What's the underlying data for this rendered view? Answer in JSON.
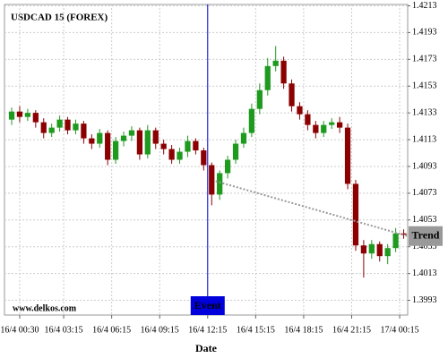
{
  "chart_data": {
    "type": "candlestick",
    "title": "USDCAD 15 (FOREX)",
    "watermark": "www.delkos.com",
    "x_label": "Date",
    "x": [
      0,
      0.5,
      1,
      1.5,
      2,
      2.5,
      3,
      3.5,
      4,
      4.5,
      5,
      5.5,
      6,
      6.5,
      7,
      7.5,
      8,
      8.5,
      9,
      9.5,
      10,
      10.5,
      11,
      11.5,
      12,
      12.5,
      13,
      13.5,
      14,
      14.5,
      15,
      15.5,
      16,
      16.5,
      17,
      17.5,
      18,
      18.5,
      19,
      19.5,
      20,
      20.5,
      21,
      21.5,
      22,
      22.5,
      23,
      23.5,
      24,
      24.5
    ],
    "open": [
      1.4128,
      1.4134,
      1.413,
      1.4133,
      1.4126,
      1.4118,
      1.4122,
      1.4128,
      1.412,
      1.4125,
      1.4114,
      1.411,
      1.4118,
      1.4098,
      1.4112,
      1.4116,
      1.412,
      1.4102,
      1.412,
      1.411,
      1.4106,
      1.4098,
      1.4104,
      1.4112,
      1.4105,
      1.4094,
      1.4072,
      1.4088,
      1.4098,
      1.411,
      1.4118,
      1.4136,
      1.415,
      1.4168,
      1.4172,
      1.4155,
      1.4138,
      1.4132,
      1.4124,
      1.4118,
      1.4124,
      1.4126,
      1.4122,
      1.408,
      1.4034,
      1.4028,
      1.4035,
      1.4026,
      1.4032,
      1.4043
    ],
    "high": [
      1.4137,
      1.4138,
      1.4136,
      1.4135,
      1.4129,
      1.4125,
      1.4131,
      1.413,
      1.4128,
      1.4127,
      1.4117,
      1.4121,
      1.412,
      1.4115,
      1.4119,
      1.4123,
      1.4122,
      1.4124,
      1.4122,
      1.4113,
      1.4109,
      1.4107,
      1.4116,
      1.4114,
      1.4107,
      1.4096,
      1.409,
      1.4101,
      1.4113,
      1.4122,
      1.414,
      1.4155,
      1.4174,
      1.4183,
      1.4175,
      1.4158,
      1.4141,
      1.4135,
      1.4127,
      1.4127,
      1.4129,
      1.413,
      1.4125,
      1.4083,
      1.4038,
      1.4038,
      1.4037,
      1.4035,
      1.4047,
      1.4046
    ],
    "low": [
      1.4124,
      1.4126,
      1.4127,
      1.4122,
      1.4114,
      1.4115,
      1.4119,
      1.4117,
      1.4117,
      1.411,
      1.4106,
      1.4107,
      1.4094,
      1.4095,
      1.4108,
      1.4112,
      1.4098,
      1.4099,
      1.4106,
      1.4102,
      1.4095,
      1.4095,
      1.41,
      1.4102,
      1.409,
      1.4064,
      1.4068,
      1.4084,
      1.4095,
      1.4107,
      1.4115,
      1.4132,
      1.4146,
      1.4164,
      1.4151,
      1.4134,
      1.4128,
      1.412,
      1.4114,
      1.4115,
      1.4121,
      1.4118,
      1.4076,
      1.403,
      1.401,
      1.4024,
      1.4022,
      1.402,
      1.4029,
      1.4039
    ],
    "close": [
      1.4134,
      1.413,
      1.4133,
      1.4126,
      1.4118,
      1.4122,
      1.4128,
      1.412,
      1.4125,
      1.4114,
      1.411,
      1.4118,
      1.4098,
      1.4112,
      1.4116,
      1.412,
      1.4102,
      1.412,
      1.411,
      1.4106,
      1.4098,
      1.4104,
      1.4112,
      1.4105,
      1.4094,
      1.4072,
      1.4088,
      1.4098,
      1.411,
      1.4118,
      1.4136,
      1.415,
      1.4168,
      1.4172,
      1.4155,
      1.4138,
      1.4132,
      1.4124,
      1.4118,
      1.4124,
      1.4126,
      1.4122,
      1.408,
      1.4034,
      1.4028,
      1.4035,
      1.4026,
      1.4032,
      1.4043,
      1.4042
    ],
    "up_color": "#1e9a1e",
    "down_color": "#8b0000",
    "xlim": [
      -0.45,
      24.75
    ],
    "ylim": [
      1.3982,
      1.4214
    ],
    "xticks": [
      {
        "value": 0.5,
        "label": "16/4 00:30"
      },
      {
        "value": 3.25,
        "label": "16/4 03:15"
      },
      {
        "value": 6.25,
        "label": "16/4 06:15"
      },
      {
        "value": 9.25,
        "label": "16/4 09:15"
      },
      {
        "value": 12.25,
        "label": "16/4 12:15"
      },
      {
        "value": 15.25,
        "label": "16/4 15:15"
      },
      {
        "value": 18.25,
        "label": "16/4 18:15"
      },
      {
        "value": 21.25,
        "label": "16/4 21:15"
      },
      {
        "value": 24.25,
        "label": "17/4 00:15"
      }
    ],
    "yticks": [
      1.4213,
      1.4193,
      1.4173,
      1.4153,
      1.4133,
      1.4113,
      1.4093,
      1.4073,
      1.4053,
      1.4033,
      1.4013,
      1.3993
    ],
    "grid": true,
    "event": {
      "label": "Event",
      "x": 12.25,
      "color": "#0000dd"
    },
    "trend": {
      "label": "Trend",
      "x": [
        12.75,
        24.75
      ],
      "y": [
        1.4082,
        1.4041
      ],
      "color": "#999999"
    }
  }
}
